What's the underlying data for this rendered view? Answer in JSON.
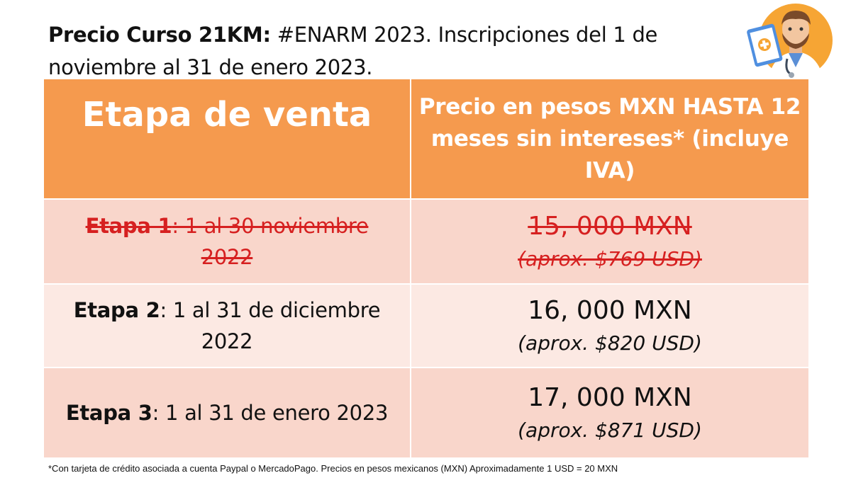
{
  "title": {
    "bold": "Precio Curso 21KM:",
    "rest": " #ENARM 2023. Inscripciones del 1 de noviembre al 31 de enero 2023."
  },
  "table": {
    "headers": [
      "Etapa de venta",
      "Precio en pesos MXN HASTA 12 meses sin intereses* (incluye IVA)"
    ],
    "rows": [
      {
        "stage": "Etapa 1",
        "dates": ": 1 al 30 noviembre 2022",
        "price": "15, 000 MXN",
        "usd": "(aprox. $769 USD)",
        "crossed_out": true
      },
      {
        "stage": "Etapa 2",
        "dates": ": 1 al 31 de diciembre 2022",
        "price": "16, 000 MXN",
        "usd": "(aprox. $820 USD)",
        "crossed_out": false
      },
      {
        "stage": "Etapa 3",
        "dates": ": 1 al 31 de enero 2023",
        "price": "17, 000 MXN",
        "usd": "(aprox. $871 USD)",
        "crossed_out": false
      }
    ]
  },
  "footnote": "*Con tarjeta de crédito asociada a cuenta Paypal o MercadoPago. Precios en pesos mexicanos (MXN) Aproximadamente 1 USD = 20 MXN",
  "colors": {
    "header": "#f59a4e",
    "row_dark": "#f9d6cb",
    "row_light": "#fce9e3",
    "strike": "#d62020"
  },
  "icons": [
    "doctor-avatar-icon"
  ]
}
